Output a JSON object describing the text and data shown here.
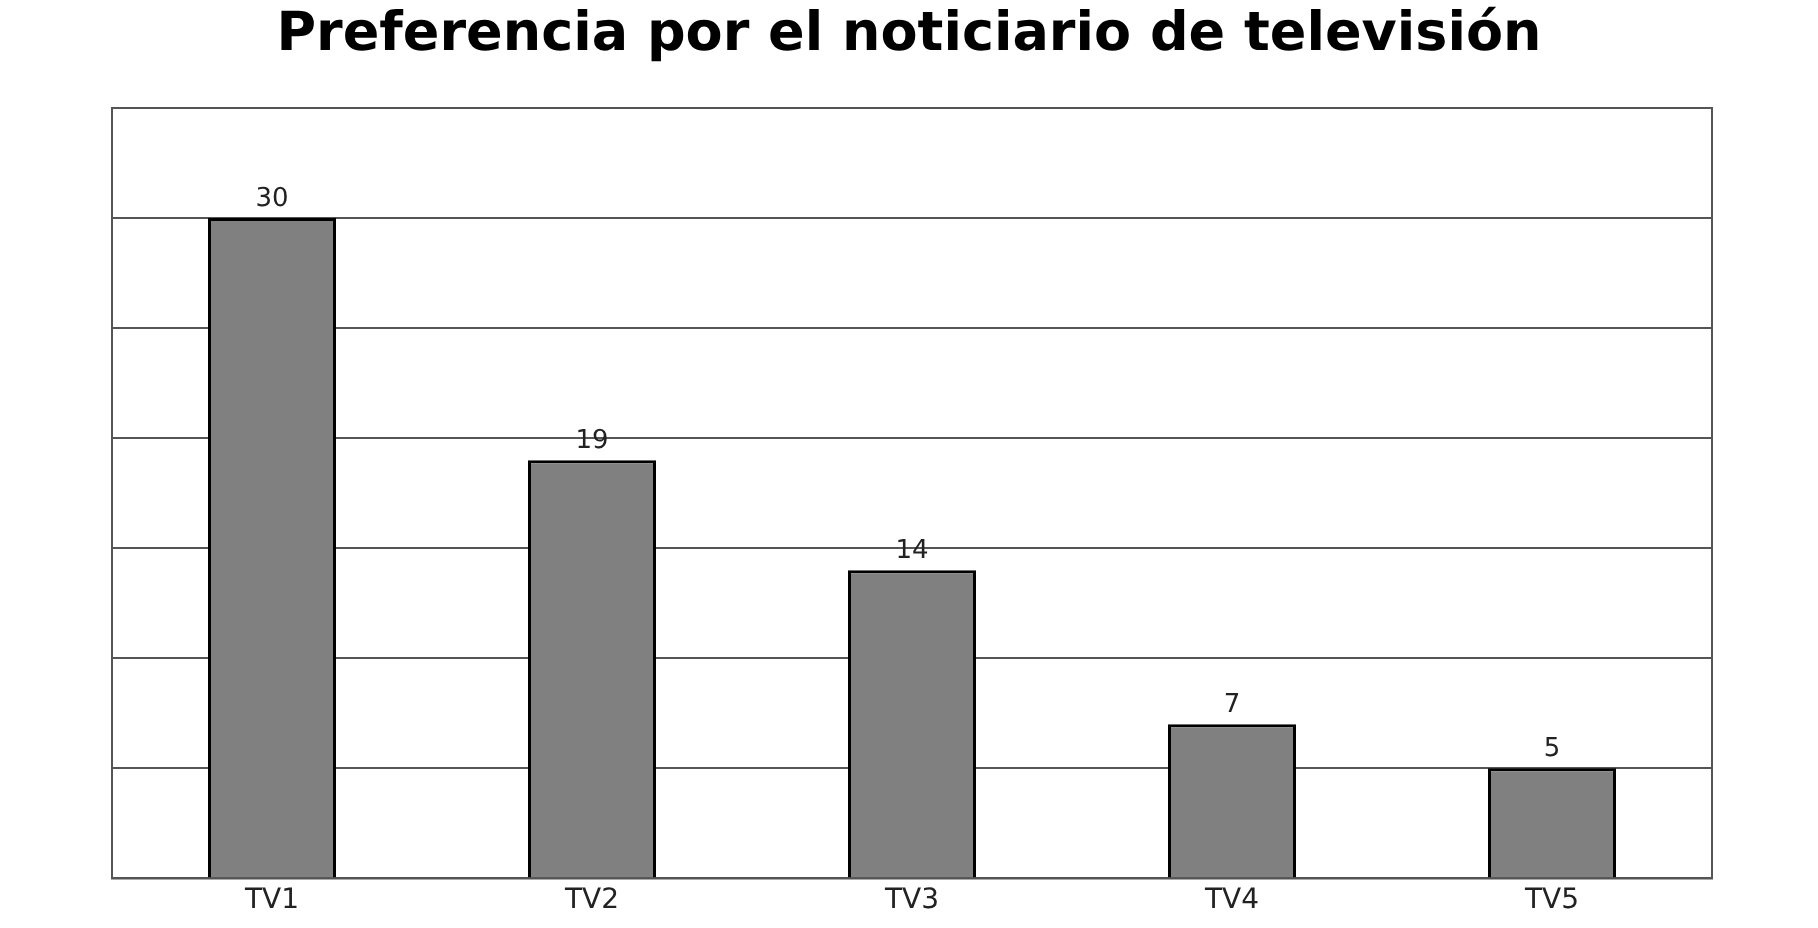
{
  "chart_data": {
    "type": "bar",
    "title": "Preferencia por el noticiario de televisión",
    "categories": [
      "TV1",
      "TV2",
      "TV3",
      "TV4",
      "TV5"
    ],
    "values": [
      30,
      19,
      14,
      7,
      5
    ],
    "color": "#808080",
    "ylim": [
      0,
      35
    ],
    "grid": "y",
    "tick_labels": "x",
    "data_labels": true,
    "legend": false
  }
}
